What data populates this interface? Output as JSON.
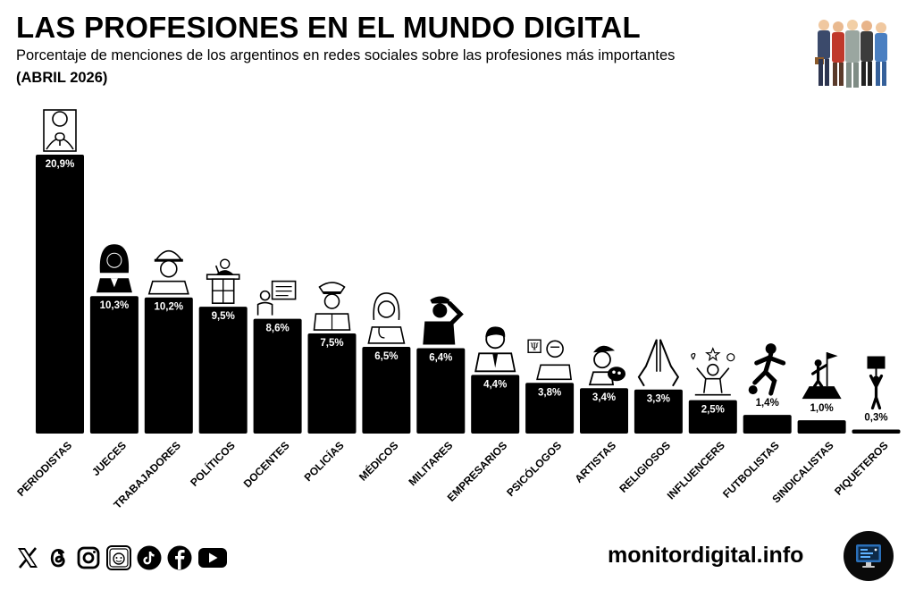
{
  "header": {
    "title": "LAS PROFESIONES EN EL MUNDO DIGITAL",
    "subtitle": "Porcentaje de menciones de los argentinos en redes sociales sobre las profesiones más importantes",
    "date": "(ABRIL 2026)"
  },
  "chart_data": {
    "type": "bar",
    "title": "LAS PROFESIONES EN EL MUNDO DIGITAL",
    "subtitle": "Porcentaje de menciones de los argentinos en redes sociales sobre las profesiones más importantes",
    "categories": [
      "PERIODISTAS",
      "JUECES",
      "TRABAJADORES",
      "POLÍTICOS",
      "DOCENTES",
      "POLICÍAS",
      "MÉDICOS",
      "MILITARES",
      "EMPRESARIOS",
      "PSICÓLOGOS",
      "ARTISTAS",
      "RELIGIOSOS",
      "INFLUENCERS",
      "FUTBOLISTAS",
      "SINDICALISTAS",
      "PIQUETEROS"
    ],
    "values": [
      20.9,
      10.3,
      10.2,
      9.5,
      8.6,
      7.5,
      6.5,
      6.4,
      4.4,
      3.8,
      3.4,
      3.3,
      2.5,
      1.4,
      1.0,
      0.3
    ],
    "value_labels": [
      "20,9%",
      "10,3%",
      "10,2%",
      "9,5%",
      "8,6%",
      "7,5%",
      "6,5%",
      "6,4%",
      "4,4%",
      "3,8%",
      "3,4%",
      "3,3%",
      "2,5%",
      "1,4%",
      "1,0%",
      "0,3%"
    ],
    "icons": [
      "journalist-microphone-icon",
      "judge-icon",
      "worker-helmet-icon",
      "politician-podium-icon",
      "teacher-board-icon",
      "police-officer-icon",
      "doctor-icon",
      "military-salute-icon",
      "businessman-icon",
      "psychologist-icon",
      "artist-palette-icon",
      "praying-hands-icon",
      "influencer-icon",
      "footballer-icon",
      "unionist-flag-icon",
      "protester-sign-icon"
    ],
    "bar_color": "#000000",
    "ylim": [
      0,
      21
    ],
    "grid": false,
    "legend": "none"
  },
  "footer": {
    "site": "monitordigital.info",
    "social_icons": [
      "x-icon",
      "threads-icon",
      "instagram-icon",
      "monitor-app-icon",
      "tiktok-icon",
      "facebook-icon",
      "youtube-icon"
    ]
  },
  "colors": {
    "text": "#000000",
    "background": "#ffffff",
    "bar": "#000000",
    "bar_label": "#ffffff"
  }
}
